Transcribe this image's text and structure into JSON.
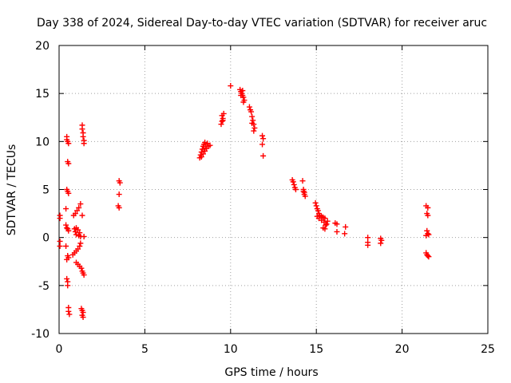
{
  "chart_data": {
    "type": "scatter",
    "title": "Day 338 of 2024, Sidereal Day-to-day VTEC variation (SDTVAR) for receiver aruc",
    "xlabel": "GPS time / hours",
    "ylabel": "SDTVAR / TECUs",
    "xlim": [
      0,
      25
    ],
    "ylim": [
      -10,
      20
    ],
    "xticks": [
      0,
      5,
      10,
      15,
      20,
      25
    ],
    "yticks": [
      -10,
      -5,
      0,
      5,
      10,
      15,
      20
    ],
    "xtick_labels": [
      "0",
      "5",
      "10",
      "15",
      "20",
      "25"
    ],
    "ytick_labels": [
      "-10",
      "-5",
      "0",
      "5",
      "10",
      "15",
      "20"
    ],
    "grid": true,
    "marker": "+",
    "series": [
      {
        "name": "SDTVAR",
        "color": "#ff0000",
        "points": [
          [
            0.05,
            2.3
          ],
          [
            0.05,
            2.0
          ],
          [
            0.05,
            -0.4
          ],
          [
            0.05,
            -0.9
          ],
          [
            0.4,
            3.0
          ],
          [
            0.45,
            10.5
          ],
          [
            0.45,
            10.2
          ],
          [
            0.5,
            10.0
          ],
          [
            0.55,
            9.8
          ],
          [
            0.5,
            7.9
          ],
          [
            0.55,
            7.7
          ],
          [
            0.45,
            5.0
          ],
          [
            0.5,
            4.8
          ],
          [
            0.55,
            4.6
          ],
          [
            0.4,
            1.3
          ],
          [
            0.45,
            1.0
          ],
          [
            0.5,
            0.9
          ],
          [
            0.55,
            0.7
          ],
          [
            0.4,
            -0.9
          ],
          [
            0.5,
            -1.9
          ],
          [
            0.55,
            -2.1
          ],
          [
            0.45,
            -2.3
          ],
          [
            0.45,
            -4.3
          ],
          [
            0.5,
            -4.6
          ],
          [
            0.5,
            -5.0
          ],
          [
            0.55,
            -7.3
          ],
          [
            0.55,
            -7.7
          ],
          [
            0.6,
            -8.0
          ],
          [
            0.8,
            -1.8
          ],
          [
            0.9,
            -1.6
          ],
          [
            1.0,
            -1.4
          ],
          [
            1.1,
            -1.2
          ],
          [
            1.2,
            -0.9
          ],
          [
            1.25,
            -0.6
          ],
          [
            0.85,
            2.3
          ],
          [
            0.95,
            2.5
          ],
          [
            1.05,
            2.8
          ],
          [
            1.15,
            3.1
          ],
          [
            1.25,
            3.5
          ],
          [
            0.9,
            0.9
          ],
          [
            1.0,
            1.0
          ],
          [
            1.1,
            0.8
          ],
          [
            1.2,
            0.5
          ],
          [
            1.0,
            0.3
          ],
          [
            1.15,
            0.2
          ],
          [
            1.25,
            0.1
          ],
          [
            0.95,
            0.6
          ],
          [
            1.0,
            -2.6
          ],
          [
            1.1,
            -2.8
          ],
          [
            1.2,
            -3.0
          ],
          [
            1.3,
            -3.2
          ],
          [
            1.35,
            11.7
          ],
          [
            1.35,
            11.3
          ],
          [
            1.4,
            10.9
          ],
          [
            1.4,
            10.5
          ],
          [
            1.45,
            10.1
          ],
          [
            1.45,
            9.8
          ],
          [
            1.35,
            2.3
          ],
          [
            1.45,
            0.1
          ],
          [
            1.35,
            -3.5
          ],
          [
            1.4,
            -3.7
          ],
          [
            1.45,
            -3.9
          ],
          [
            1.3,
            -7.4
          ],
          [
            1.35,
            -7.6
          ],
          [
            1.4,
            -7.8
          ],
          [
            1.35,
            -8.1
          ],
          [
            1.4,
            -8.3
          ],
          [
            3.5,
            5.9
          ],
          [
            3.55,
            5.7
          ],
          [
            3.5,
            4.5
          ],
          [
            3.45,
            3.3
          ],
          [
            3.5,
            3.1
          ],
          [
            8.2,
            8.3
          ],
          [
            8.25,
            8.6
          ],
          [
            8.3,
            8.9
          ],
          [
            8.35,
            9.2
          ],
          [
            8.4,
            9.5
          ],
          [
            8.45,
            9.7
          ],
          [
            8.5,
            9.9
          ],
          [
            8.3,
            8.4
          ],
          [
            8.4,
            8.7
          ],
          [
            8.5,
            9.0
          ],
          [
            8.6,
            9.3
          ],
          [
            8.7,
            9.5
          ],
          [
            8.8,
            9.6
          ],
          [
            8.45,
            9.2
          ],
          [
            8.55,
            9.5
          ],
          [
            8.65,
            9.8
          ],
          [
            9.45,
            11.8
          ],
          [
            9.5,
            12.1
          ],
          [
            9.55,
            12.4
          ],
          [
            9.5,
            12.7
          ],
          [
            9.6,
            12.9
          ],
          [
            9.55,
            12.2
          ],
          [
            10.0,
            15.8
          ],
          [
            10.55,
            15.4
          ],
          [
            10.6,
            15.2
          ],
          [
            10.65,
            15.0
          ],
          [
            10.7,
            14.8
          ],
          [
            10.75,
            14.6
          ],
          [
            10.8,
            14.3
          ],
          [
            10.75,
            14.1
          ],
          [
            10.6,
            14.8
          ],
          [
            10.7,
            15.3
          ],
          [
            11.1,
            13.6
          ],
          [
            11.15,
            13.3
          ],
          [
            11.2,
            13.1
          ],
          [
            11.25,
            12.6
          ],
          [
            11.3,
            12.2
          ],
          [
            11.35,
            11.8
          ],
          [
            11.4,
            11.4
          ],
          [
            11.35,
            11.1
          ],
          [
            11.25,
            11.9
          ],
          [
            11.85,
            10.6
          ],
          [
            11.9,
            10.3
          ],
          [
            11.85,
            9.7
          ],
          [
            11.9,
            8.5
          ],
          [
            13.6,
            6.0
          ],
          [
            13.65,
            5.8
          ],
          [
            13.7,
            5.5
          ],
          [
            13.75,
            5.2
          ],
          [
            13.8,
            5.0
          ],
          [
            14.2,
            5.9
          ],
          [
            14.25,
            5.0
          ],
          [
            14.3,
            4.7
          ],
          [
            14.3,
            4.5
          ],
          [
            14.35,
            4.3
          ],
          [
            14.25,
            4.8
          ],
          [
            14.95,
            3.6
          ],
          [
            15.0,
            3.3
          ],
          [
            15.05,
            3.0
          ],
          [
            15.1,
            2.8
          ],
          [
            15.15,
            2.5
          ],
          [
            15.2,
            2.3
          ],
          [
            15.3,
            2.2
          ],
          [
            15.4,
            2.1
          ],
          [
            15.5,
            2.0
          ],
          [
            15.05,
            2.2
          ],
          [
            15.15,
            2.0
          ],
          [
            15.3,
            1.8
          ],
          [
            15.45,
            1.6
          ],
          [
            15.55,
            1.3
          ],
          [
            15.4,
            1.0
          ],
          [
            15.5,
            0.9
          ],
          [
            15.6,
            1.4
          ],
          [
            15.65,
            1.7
          ],
          [
            16.1,
            1.5
          ],
          [
            16.2,
            1.4
          ],
          [
            16.2,
            0.6
          ],
          [
            16.7,
            1.1
          ],
          [
            16.65,
            0.4
          ],
          [
            18.0,
            0.0
          ],
          [
            18.0,
            -0.5
          ],
          [
            18.0,
            -0.8
          ],
          [
            18.75,
            -0.1
          ],
          [
            18.8,
            -0.3
          ],
          [
            18.75,
            -0.6
          ],
          [
            21.4,
            3.3
          ],
          [
            21.5,
            3.1
          ],
          [
            21.45,
            2.5
          ],
          [
            21.5,
            2.3
          ],
          [
            21.45,
            0.7
          ],
          [
            21.5,
            0.4
          ],
          [
            21.55,
            0.3
          ],
          [
            21.4,
            0.2
          ],
          [
            21.4,
            -1.6
          ],
          [
            21.45,
            -1.8
          ],
          [
            21.5,
            -1.9
          ],
          [
            21.55,
            -2.0
          ]
        ]
      }
    ]
  }
}
